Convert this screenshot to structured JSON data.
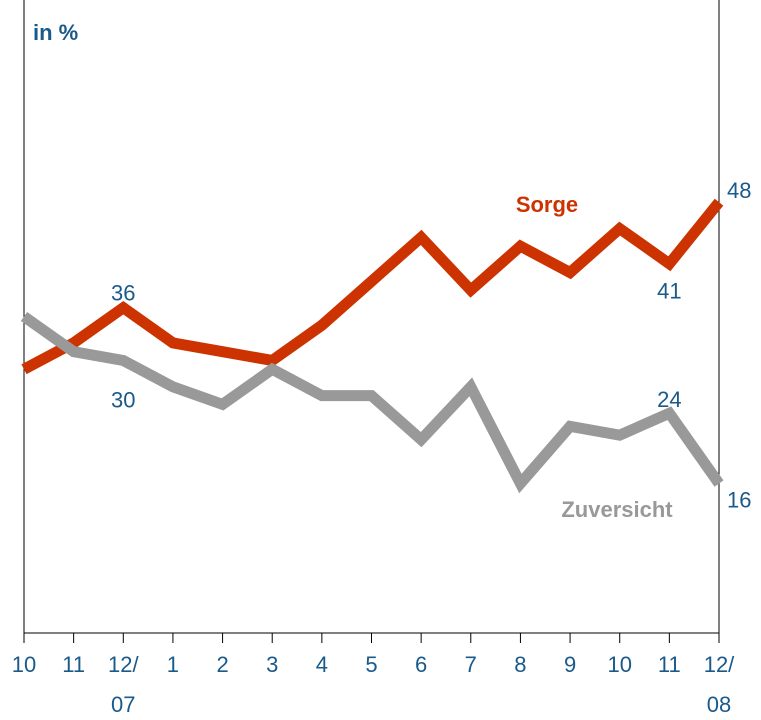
{
  "chart_data": {
    "type": "line",
    "y_label": "in %",
    "categories": [
      "10",
      "11",
      "12/\n07",
      "1",
      "2",
      "3",
      "4",
      "5",
      "6",
      "7",
      "8",
      "9",
      "10",
      "11",
      "12/\n08"
    ],
    "series": [
      {
        "name": "Sorge",
        "color": "#cc3300",
        "values": [
          29,
          32,
          36,
          32,
          31,
          30,
          34,
          39,
          44,
          38,
          43,
          40,
          45,
          41,
          48
        ]
      },
      {
        "name": "Zuversicht",
        "color": "#999999",
        "values": [
          35,
          31,
          30,
          27,
          25,
          29,
          26,
          26,
          21,
          27,
          16,
          22.5,
          21.5,
          24,
          16
        ]
      }
    ],
    "ylim": [
      -1,
      71
    ]
  }
}
